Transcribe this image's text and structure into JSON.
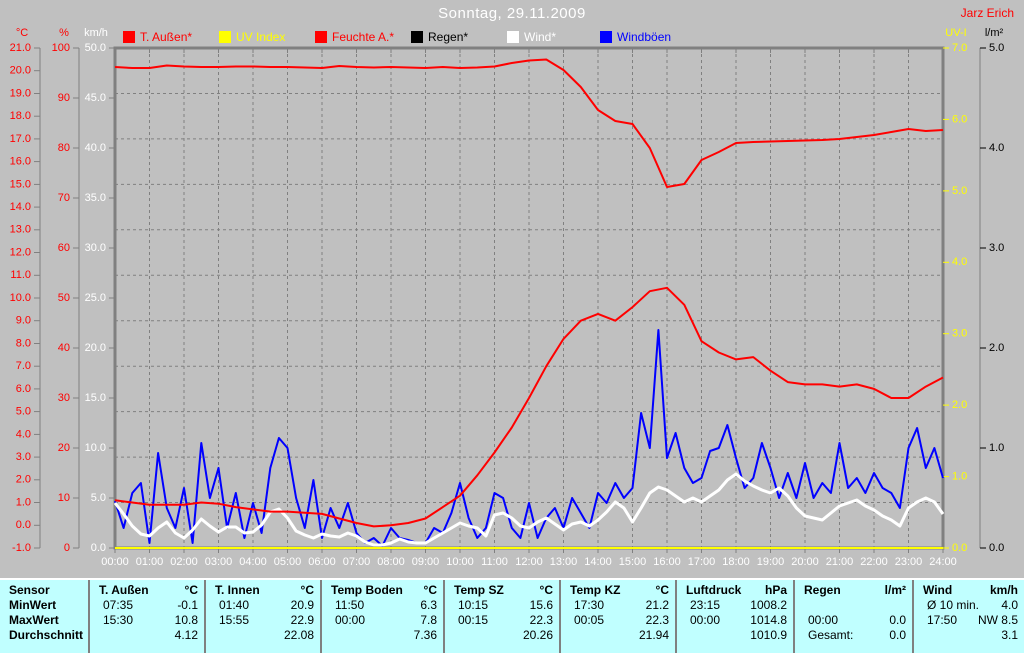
{
  "header": {
    "title": "Sonntag, 29.11.2009",
    "owner": "Jarz Erich"
  },
  "axis_unit_headers": {
    "temp": "°C",
    "humidity": "%",
    "wind": "km/h",
    "uv": "UV-I",
    "rain": "l/m²"
  },
  "legend": {
    "position": "top",
    "items": [
      {
        "label": "T. Außen*",
        "swatch": "#ff0000",
        "text": "#ff0000"
      },
      {
        "label": "UV Index",
        "swatch": "#ffff00",
        "text": "#ffff00"
      },
      {
        "label": "Feuchte A.*",
        "swatch": "#ff0000",
        "text": "#ff0000"
      },
      {
        "label": "Regen*",
        "swatch": "#000000",
        "text": "#000000"
      },
      {
        "label": "Wind*",
        "swatch": "#ffffff",
        "text": "#ffffff"
      },
      {
        "label": "Windböen",
        "swatch": "#0000ff",
        "text": "#0000ff"
      }
    ]
  },
  "chart_data": {
    "type": "line",
    "title": "Sonntag, 29.11.2009",
    "background": "#c0c0c0",
    "grid": {
      "style": "dashed",
      "color": "#808080",
      "h_values_temp": [
        19,
        17,
        15,
        13,
        11,
        9,
        7,
        5,
        3,
        1
      ],
      "v_lines_every_hour": true
    },
    "x_axis": {
      "unit": "time",
      "start_hour": 0,
      "end_hour": 24,
      "tick_interval_hours": 1,
      "tick_labels": [
        "00:00",
        "01:00",
        "02:00",
        "03:00",
        "04:00",
        "05:00",
        "06:00",
        "07:00",
        "08:00",
        "09:00",
        "10:00",
        "11:00",
        "12:00",
        "13:00",
        "14:00",
        "15:00",
        "16:00",
        "17:00",
        "18:00",
        "19:00",
        "20:00",
        "21:00",
        "22:00",
        "23:00",
        "24:00"
      ]
    },
    "axes": [
      {
        "id": "temp",
        "side": "left",
        "label": "°C",
        "color": "#ff0000",
        "min": -1,
        "max": 21,
        "step": 1,
        "decimals": 1
      },
      {
        "id": "humidity",
        "side": "left",
        "label": "%",
        "color": "#ff0000",
        "min": 0,
        "max": 100,
        "step": 10,
        "decimals": 0
      },
      {
        "id": "wind",
        "side": "left",
        "label": "km/h",
        "color": "#ffffff",
        "min": 0,
        "max": 50,
        "step": 5,
        "decimals": 1
      },
      {
        "id": "uv",
        "side": "right",
        "label": "UV-I",
        "color": "#ffff00",
        "min": 0,
        "max": 7,
        "step": 1,
        "decimals": 1
      },
      {
        "id": "rain",
        "side": "right",
        "label": "l/m²",
        "color": "#000000",
        "min": 0,
        "max": 5,
        "step": 1,
        "decimals": 1
      }
    ],
    "series": [
      {
        "name": "Regen*",
        "axis": "rain",
        "color": "#000000",
        "width": 1,
        "t0": 0,
        "dt": 24,
        "values": [
          0.0,
          0.0
        ]
      },
      {
        "name": "Windböen",
        "axis": "wind",
        "color": "#0000ff",
        "width": 2,
        "t0": 0,
        "dt": 0.25,
        "values": [
          4.7,
          2.0,
          5.5,
          6.5,
          0.5,
          9.5,
          4.0,
          2.0,
          6.0,
          0.5,
          10.5,
          5.0,
          8.0,
          2.0,
          5.5,
          1.0,
          4.5,
          1.5,
          8.0,
          11.0,
          10.0,
          5.0,
          2.0,
          6.8,
          1.0,
          4.0,
          2.0,
          4.5,
          1.5,
          0.5,
          1.0,
          0.2,
          2.0,
          1.0,
          0.8,
          0.5,
          0.5,
          2.0,
          1.5,
          3.5,
          6.5,
          3.0,
          1.0,
          2.0,
          5.5,
          5.0,
          2.0,
          1.0,
          4.5,
          1.0,
          3.0,
          4.0,
          2.0,
          5.0,
          3.5,
          2.0,
          5.5,
          4.5,
          6.5,
          5.0,
          6.0,
          13.5,
          10.0,
          21.8,
          9.0,
          11.5,
          8.0,
          6.5,
          7.0,
          9.7,
          10.0,
          12.3,
          9.0,
          6.0,
          7.0,
          10.5,
          8.0,
          5.0,
          7.5,
          5.0,
          8.5,
          5.0,
          6.5,
          5.5,
          10.5,
          6.0,
          7.0,
          5.5,
          7.5,
          6.0,
          5.5,
          4.0,
          10.0,
          12.0,
          8.0,
          10.0,
          7.0
        ]
      },
      {
        "name": "UV Index",
        "axis": "uv",
        "color": "#ffff00",
        "width": 2,
        "t0": 0,
        "dt": 24,
        "values": [
          0.0,
          0.0
        ]
      },
      {
        "name": "Wind*",
        "axis": "wind",
        "color": "#ffffff",
        "width": 3,
        "t0": 0,
        "dt": 0.25,
        "values": [
          4.5,
          3.4,
          2.2,
          1.4,
          1.2,
          2.0,
          2.6,
          1.5,
          1.0,
          1.8,
          2.9,
          2.2,
          1.6,
          2.1,
          2.1,
          1.5,
          1.6,
          2.3,
          3.6,
          3.9,
          3.0,
          1.7,
          1.3,
          1.0,
          1.4,
          1.2,
          1.1,
          1.5,
          1.2,
          0.6,
          0.3,
          0.3,
          0.5,
          0.9,
          0.6,
          0.5,
          0.5,
          1.0,
          1.5,
          2.0,
          2.5,
          2.2,
          2.0,
          1.2,
          3.3,
          3.5,
          3.0,
          2.2,
          2.0,
          2.6,
          3.0,
          2.4,
          1.8,
          2.4,
          2.6,
          2.2,
          2.8,
          3.6,
          4.6,
          4.0,
          2.6,
          4.0,
          5.5,
          6.1,
          5.8,
          5.2,
          4.6,
          5.0,
          4.6,
          5.2,
          5.8,
          6.8,
          7.4,
          6.7,
          6.2,
          5.8,
          5.5,
          6.0,
          5.2,
          4.0,
          3.2,
          3.0,
          2.8,
          3.5,
          4.2,
          4.5,
          4.8,
          4.2,
          3.8,
          3.2,
          2.8,
          2.2,
          4.0,
          4.6,
          5.0,
          4.6,
          3.4
        ]
      },
      {
        "name": "T. Außen*",
        "axis": "temp",
        "color": "#ff0000",
        "width": 2,
        "t0": 0,
        "dt": 0.5,
        "values": [
          1.1,
          1.0,
          0.9,
          0.9,
          0.9,
          1.0,
          0.95,
          0.8,
          0.7,
          0.6,
          0.6,
          0.55,
          0.5,
          0.3,
          0.1,
          -0.05,
          0.0,
          0.1,
          0.3,
          0.8,
          1.3,
          2.2,
          3.2,
          4.3,
          5.6,
          7.0,
          8.2,
          9.0,
          9.3,
          9.0,
          9.6,
          10.3,
          10.45,
          9.7,
          8.1,
          7.6,
          7.3,
          7.4,
          6.8,
          6.3,
          6.2,
          6.2,
          6.1,
          6.2,
          6.0,
          5.6,
          5.6,
          6.1,
          6.5
        ]
      },
      {
        "name": "Feuchte A.*",
        "axis": "humidity",
        "color": "#ff0000",
        "width": 2,
        "t0": 0,
        "dt": 0.5,
        "values": [
          96.2,
          96.0,
          96.0,
          96.5,
          96.3,
          96.2,
          96.2,
          96.3,
          96.3,
          96.2,
          96.2,
          96.1,
          96.0,
          96.4,
          96.2,
          96.1,
          96.2,
          96.1,
          96.0,
          96.2,
          96.0,
          96.1,
          96.3,
          97.0,
          97.5,
          97.7,
          95.6,
          92.2,
          87.6,
          85.4,
          84.8,
          80.0,
          72.2,
          72.8,
          77.6,
          79.2,
          81.0,
          81.2,
          81.3,
          81.4,
          81.5,
          81.6,
          81.8,
          82.2,
          82.6,
          83.2,
          83.8,
          83.4,
          83.6
        ]
      }
    ]
  },
  "summary_table": {
    "row_labels": [
      "Sensor",
      "MinWert",
      "MaxWert",
      "Durchschnitt"
    ],
    "columns": [
      {
        "header": "T. Außen",
        "unit": "°C",
        "rows": [
          [
            "07:35",
            "-0.1"
          ],
          [
            "15:30",
            "10.8"
          ],
          [
            "",
            "4.12"
          ]
        ]
      },
      {
        "header": "T. Innen",
        "unit": "°C",
        "rows": [
          [
            "01:40",
            "20.9"
          ],
          [
            "15:55",
            "22.9"
          ],
          [
            "",
            "22.08"
          ]
        ]
      },
      {
        "header": "Temp Boden",
        "unit": "°C",
        "rows": [
          [
            "11:50",
            "6.3"
          ],
          [
            "00:00",
            "7.8"
          ],
          [
            "",
            "7.36"
          ]
        ]
      },
      {
        "header": "Temp SZ",
        "unit": "°C",
        "rows": [
          [
            "10:15",
            "15.6"
          ],
          [
            "00:15",
            "22.3"
          ],
          [
            "",
            "20.26"
          ]
        ]
      },
      {
        "header": "Temp KZ",
        "unit": "°C",
        "rows": [
          [
            "17:30",
            "21.2"
          ],
          [
            "00:05",
            "22.3"
          ],
          [
            "",
            "21.94"
          ]
        ]
      },
      {
        "header": "Luftdruck",
        "unit": "hPa",
        "rows": [
          [
            "23:15",
            "1008.2"
          ],
          [
            "00:00",
            "1014.8"
          ],
          [
            "",
            "1010.9"
          ]
        ]
      },
      {
        "header": "Regen",
        "unit": "l/m²",
        "rows": [
          [
            "",
            ""
          ],
          [
            "00:00",
            "0.0"
          ],
          [
            "Gesamt:",
            "0.0"
          ]
        ]
      },
      {
        "header": "Wind",
        "unit": "km/h",
        "rows": [
          [
            "Ø 10 min.",
            "4.0"
          ],
          [
            "17:50",
            "NW 8.5"
          ],
          [
            "",
            "3.1"
          ]
        ]
      }
    ]
  }
}
